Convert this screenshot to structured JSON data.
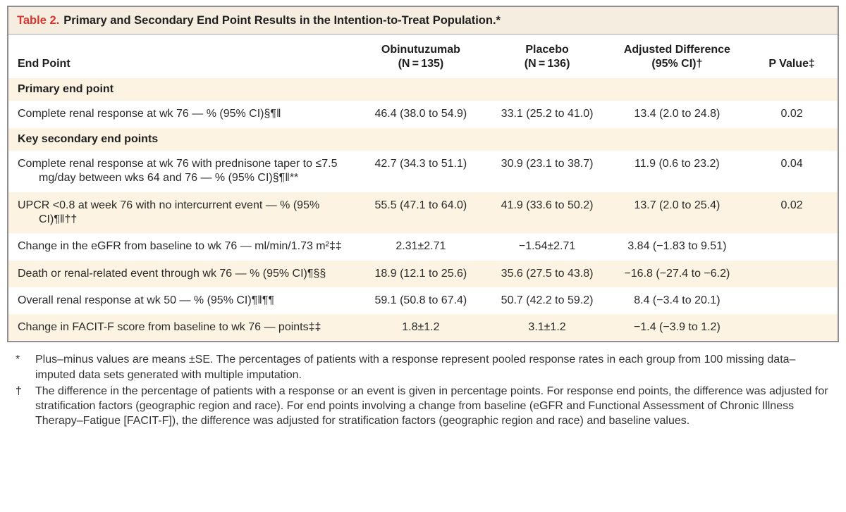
{
  "table": {
    "title_label": "Table 2.",
    "title_text": "Primary and Secondary End Point Results in the Intention-to-Treat Population.*",
    "columns": {
      "endpoint": "End Point",
      "obinutuzumab_line1": "Obinutuzumab",
      "obinutuzumab_line2": "(N = 135)",
      "placebo_line1": "Placebo",
      "placebo_line2": "(N = 136)",
      "difference_line1": "Adjusted Difference",
      "difference_line2": "(95% CI)†",
      "pvalue": "P Value‡"
    },
    "rows": [
      {
        "type": "section",
        "label": "Primary end point",
        "shade": true
      },
      {
        "type": "data",
        "label": "Complete renal response at wk 76 — % (95% CI)§¶‖",
        "obinutuzumab": "46.4 (38.0 to 54.9)",
        "placebo": "33.1 (25.2 to 41.0)",
        "difference": "13.4 (2.0 to 24.8)",
        "p_value": "0.02",
        "shade": false
      },
      {
        "type": "section",
        "label": "Key secondary end points",
        "shade": true
      },
      {
        "type": "data",
        "label": "Complete renal response at wk 76 with prednisone taper to ≤7.5 mg/day between wks 64 and 76 — % (95% CI)§¶‖**",
        "obinutuzumab": "42.7 (34.3 to 51.1)",
        "placebo": "30.9 (23.1 to 38.7)",
        "difference": "11.9 (0.6 to 23.2)",
        "p_value": "0.04",
        "shade": false
      },
      {
        "type": "data",
        "label": "UPCR <0.8 at week 76 with no intercurrent event — % (95% CI)¶‖††",
        "obinutuzumab": "55.5 (47.1 to 64.0)",
        "placebo": "41.9 (33.6 to 50.2)",
        "difference": "13.7 (2.0 to 25.4)",
        "p_value": "0.02",
        "shade": true
      },
      {
        "type": "data",
        "label": "Change in the eGFR from baseline to wk 76 — ml/min/1.73 m²‡‡",
        "obinutuzumab": "2.31±2.71",
        "placebo": "−1.54±2.71",
        "difference": "3.84 (−1.83 to 9.51)",
        "p_value": "",
        "shade": false
      },
      {
        "type": "data",
        "label": "Death or renal-related event through wk 76 — % (95% CI)¶§§",
        "obinutuzumab": "18.9 (12.1 to 25.6)",
        "placebo": "35.6 (27.5 to 43.8)",
        "difference": "−16.8 (−27.4 to −6.2)",
        "p_value": "",
        "shade": true
      },
      {
        "type": "data",
        "label": "Overall renal response at wk 50 — % (95% CI)¶‖¶¶",
        "obinutuzumab": "59.1 (50.8 to 67.4)",
        "placebo": "50.7 (42.2 to 59.2)",
        "difference": "8.4 (−3.4 to 20.1)",
        "p_value": "",
        "shade": false
      },
      {
        "type": "data",
        "label": "Change in FACIT-F score from baseline to wk 76 — points‡‡",
        "obinutuzumab": "1.8±1.2",
        "placebo": "3.1±1.2",
        "difference": "−1.4 (−3.9 to 1.2)",
        "p_value": "",
        "shade": true
      }
    ]
  },
  "footnotes": [
    {
      "symbol": "*",
      "text": "Plus–minus values are means ±SE. The percentages of patients with a response represent pooled response rates in each group from 100 missing data–imputed data sets generated with multiple imputation."
    },
    {
      "symbol": "†",
      "text": "The difference in the percentage of patients with a response or an event is given in percentage points. For response end points, the difference was adjusted for stratification factors (geographic region and race). For end points involving a change from baseline (eGFR and Functional Assessment of Chronic Illness Therapy–Fatigue [FACIT-F]), the difference was adjusted for stratification factors (geographic region and race) and baseline values."
    }
  ]
}
